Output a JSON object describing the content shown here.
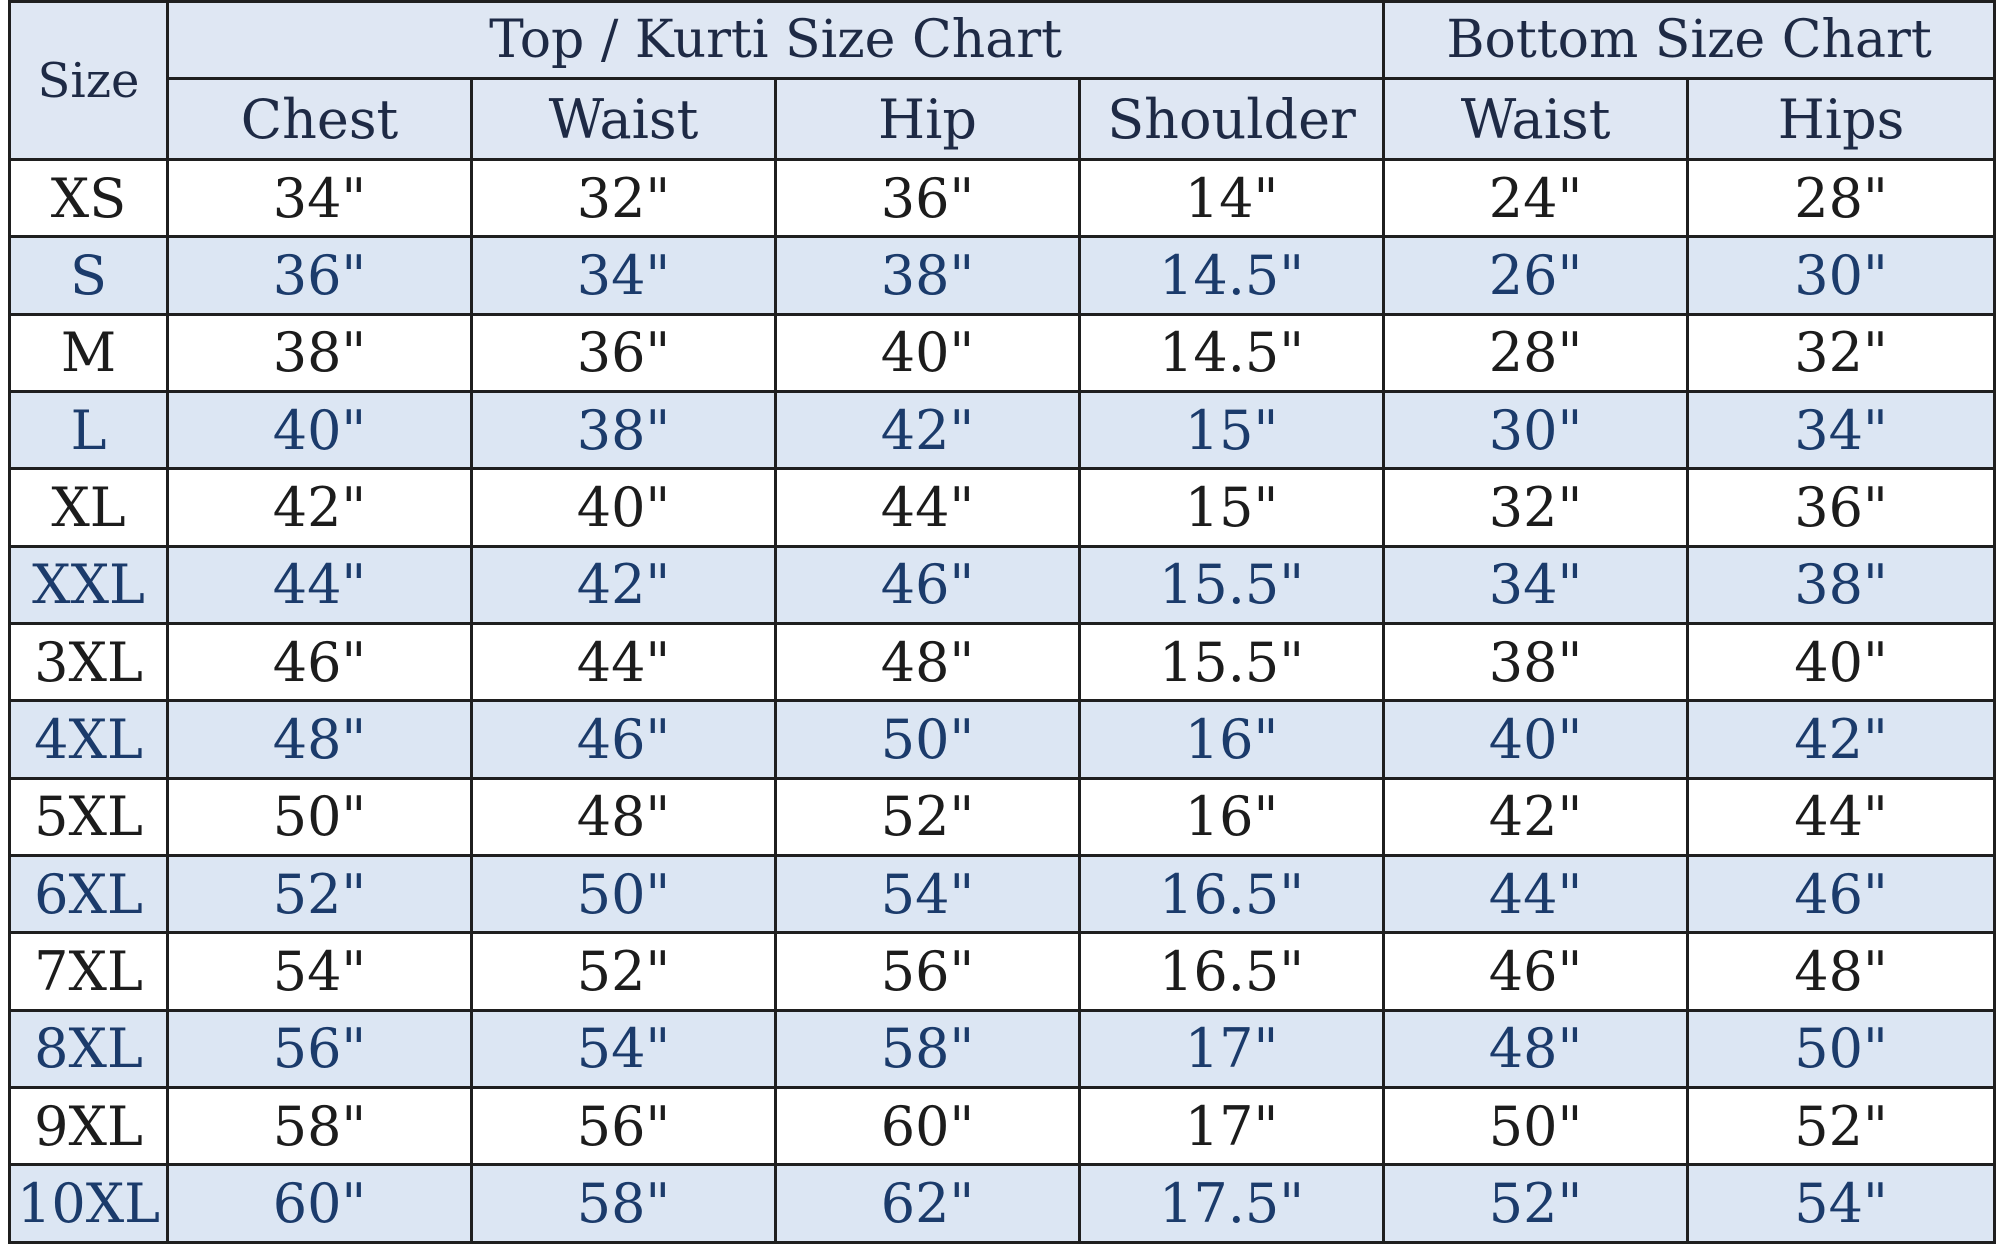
{
  "table": {
    "size_header": "Size",
    "top_group": "Top / Kurti Size Chart",
    "bottom_group": "Bottom Size Chart",
    "columns": [
      "Chest",
      "Waist",
      "Hip",
      "Shoulder",
      "Waist",
      "Hips"
    ],
    "rows": [
      [
        "XS",
        "34\"",
        "32\"",
        "36\"",
        "14\"",
        "24\"",
        "28\""
      ],
      [
        "S",
        "36\"",
        "34\"",
        "38\"",
        "14.5\"",
        "26\"",
        "30\""
      ],
      [
        "M",
        "38\"",
        "36\"",
        "40\"",
        "14.5\"",
        "28\"",
        "32\""
      ],
      [
        "L",
        "40\"",
        "38\"",
        "42\"",
        "15\"",
        "30\"",
        "34\""
      ],
      [
        "XL",
        "42\"",
        "40\"",
        "44\"",
        "15\"",
        "32\"",
        "36\""
      ],
      [
        "XXL",
        "44\"",
        "42\"",
        "46\"",
        "15.5\"",
        "34\"",
        "38\""
      ],
      [
        "3XL",
        "46\"",
        "44\"",
        "48\"",
        "15.5\"",
        "38\"",
        "40\""
      ],
      [
        "4XL",
        "48\"",
        "46\"",
        "50\"",
        "16\"",
        "40\"",
        "42\""
      ],
      [
        "5XL",
        "50\"",
        "48\"",
        "52\"",
        "16\"",
        "42\"",
        "44\""
      ],
      [
        "6XL",
        "52\"",
        "50\"",
        "54\"",
        "16.5\"",
        "44\"",
        "46\""
      ],
      [
        "7XL",
        "54\"",
        "52\"",
        "56\"",
        "16.5\"",
        "46\"",
        "48\""
      ],
      [
        "8XL",
        "56\"",
        "54\"",
        "58\"",
        "17\"",
        "48\"",
        "50\""
      ],
      [
        "9XL",
        "58\"",
        "56\"",
        "60\"",
        "17\"",
        "50\"",
        "52\""
      ],
      [
        "10XL",
        "60\"",
        "58\"",
        "62\"",
        "17.5\"",
        "52\"",
        "54\""
      ]
    ]
  },
  "colors": {
    "header_fill": "#dfe7f3",
    "alt_row_fill": "#dce6f3",
    "alt_row_text": "#1b3b6b",
    "border": "#1f1f1f"
  }
}
